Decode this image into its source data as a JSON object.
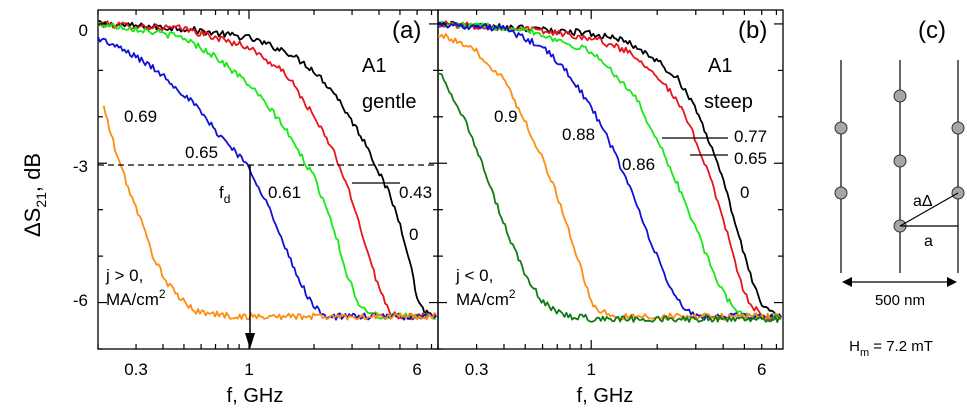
{
  "figure": {
    "ylabel_main": "ΔS",
    "ylabel_sub": "21",
    "ylabel_tail": ", dB",
    "xlabel": "f, GHz",
    "yticks": [
      "0",
      "-3",
      "-6"
    ],
    "xticks": [
      "0.3",
      "1",
      "6"
    ]
  },
  "colors": {
    "black": "#000000",
    "red": "#e8141b",
    "green": "#18e818",
    "blue": "#1010d8",
    "orange": "#ff8c10",
    "darkgreen": "#137a13"
  },
  "chart_data": [
    {
      "type": "line",
      "panel_label": "(a)",
      "sample_label": "A1",
      "profile_label": "gentle",
      "xlabel": "f, GHz",
      "xscale": "log",
      "xlim": [
        0.2,
        7.5
      ],
      "ylim": [
        -7,
        0.3
      ],
      "threshold_y": -3,
      "threshold_label": "f",
      "threshold_label_sub": "d",
      "threshold_x": 1.0,
      "current_note_line1": "j > 0,",
      "current_note_line2": "MA/cm",
      "current_note_sup": "2",
      "series": [
        {
          "label": "0",
          "color": "black",
          "x": [
            0.2,
            0.5,
            1,
            1.5,
            2,
            2.5,
            3,
            3.5,
            4,
            4.5,
            5,
            5.5,
            6,
            6.5,
            7.5
          ],
          "y": [
            0,
            -0.1,
            -0.3,
            -0.6,
            -1.0,
            -1.5,
            -2.1,
            -2.6,
            -3.2,
            -3.7,
            -4.3,
            -5.0,
            -5.9,
            -6.2,
            -6.3
          ]
        },
        {
          "label": "0.43",
          "color": "red",
          "x": [
            0.2,
            0.5,
            1,
            1.5,
            2,
            2.5,
            3,
            3.5,
            4,
            4.5,
            5,
            5.5,
            6,
            7.5
          ],
          "y": [
            0,
            -0.1,
            -0.5,
            -1.1,
            -2.0,
            -2.8,
            -3.8,
            -4.8,
            -5.7,
            -6.2,
            -6.3,
            -6.3,
            -6.3,
            -6.3
          ]
        },
        {
          "label": "0.61",
          "color": "green",
          "x": [
            0.2,
            0.3,
            0.5,
            0.7,
            1,
            1.4,
            2,
            2.4,
            2.8,
            3.2,
            3.6,
            4,
            7.5
          ],
          "y": [
            0,
            -0.1,
            -0.3,
            -0.7,
            -1.3,
            -2.1,
            -3.3,
            -4.2,
            -5.3,
            -6.0,
            -6.2,
            -6.3,
            -6.3
          ]
        },
        {
          "label": "0.65",
          "color": "blue",
          "x": [
            0.2,
            0.3,
            0.4,
            0.55,
            0.7,
            0.85,
            1,
            1.2,
            1.4,
            1.7,
            2,
            2.3,
            2.6,
            3,
            7.5
          ],
          "y": [
            -0.3,
            -0.7,
            -1.1,
            -1.7,
            -2.3,
            -2.7,
            -3.1,
            -3.8,
            -4.6,
            -5.5,
            -6.1,
            -6.3,
            -6.3,
            -6.3,
            -6.3
          ]
        },
        {
          "label": "0.69",
          "color": "orange",
          "x": [
            0.21,
            0.24,
            0.28,
            0.32,
            0.36,
            0.42,
            0.5,
            0.58,
            0.7,
            0.85,
            1,
            1.5,
            7.5
          ],
          "y": [
            -1.7,
            -2.7,
            -3.6,
            -4.3,
            -5.0,
            -5.6,
            -6.0,
            -6.2,
            -6.25,
            -6.3,
            -6.3,
            -6.3,
            -6.3
          ]
        }
      ]
    },
    {
      "type": "line",
      "panel_label": "(b)",
      "sample_label": "A1",
      "profile_label": "steep",
      "xlabel": "f, GHz",
      "xscale": "log",
      "xlim": [
        0.2,
        7.5
      ],
      "ylim": [
        -7,
        0.3
      ],
      "current_note_line1": "j < 0,",
      "current_note_line2": "MA/cm",
      "current_note_sup": "2",
      "series": [
        {
          "label": "0",
          "color": "black",
          "x": [
            0.2,
            0.5,
            1,
            1.5,
            2,
            2.5,
            3,
            3.5,
            4,
            4.5,
            5,
            5.5,
            6,
            6.5,
            7.5
          ],
          "y": [
            0,
            -0.1,
            -0.2,
            -0.4,
            -0.8,
            -1.2,
            -1.8,
            -2.6,
            -3.4,
            -4.2,
            -5.0,
            -5.6,
            -6.0,
            -6.2,
            -6.3
          ]
        },
        {
          "label": "0.65",
          "color": "red",
          "x": [
            0.2,
            0.5,
            1,
            1.5,
            2,
            2.5,
            3,
            3.5,
            4,
            4.5,
            5,
            5.5,
            6,
            7.5
          ],
          "y": [
            0,
            -0.1,
            -0.3,
            -0.6,
            -1.1,
            -1.7,
            -2.5,
            -3.3,
            -4.2,
            -5.1,
            -5.8,
            -6.1,
            -6.3,
            -6.4
          ]
        },
        {
          "label": "0.77",
          "color": "green",
          "x": [
            0.2,
            0.5,
            1,
            1.3,
            1.6,
            2,
            2.5,
            3,
            3.5,
            4,
            4.5,
            5,
            7.5
          ],
          "y": [
            0,
            -0.1,
            -0.6,
            -1.1,
            -1.6,
            -2.5,
            -3.5,
            -4.4,
            -5.2,
            -5.8,
            -6.1,
            -6.3,
            -6.3
          ]
        },
        {
          "label": "0.86",
          "color": "blue",
          "x": [
            0.2,
            0.4,
            0.6,
            0.8,
            1,
            1.2,
            1.5,
            1.8,
            2.2,
            2.6,
            3,
            7.5
          ],
          "y": [
            0,
            -0.1,
            -0.5,
            -1.1,
            -1.8,
            -2.5,
            -3.5,
            -4.5,
            -5.5,
            -6.1,
            -6.3,
            -6.3
          ]
        },
        {
          "label": "0.88",
          "color": "orange",
          "x": [
            0.2,
            0.3,
            0.4,
            0.5,
            0.6,
            0.7,
            0.8,
            0.9,
            1,
            1.1,
            1.3,
            7.5
          ],
          "y": [
            -0.2,
            -0.6,
            -1.2,
            -2.1,
            -2.9,
            -3.7,
            -4.5,
            -5.3,
            -6.0,
            -6.2,
            -6.3,
            -6.3
          ]
        },
        {
          "label": "0.9",
          "color": "darkgreen",
          "x": [
            0.2,
            0.25,
            0.3,
            0.35,
            0.4,
            0.45,
            0.5,
            0.55,
            0.6,
            0.7,
            0.8,
            0.9,
            1,
            7.5
          ],
          "y": [
            -1.0,
            -1.8,
            -2.7,
            -3.6,
            -4.3,
            -4.9,
            -5.4,
            -5.7,
            -6.0,
            -6.2,
            -6.3,
            -6.3,
            -6.35,
            -6.35
          ]
        }
      ]
    }
  ],
  "panel_c": {
    "label": "(c)",
    "label_a_delta": "aΔ",
    "label_a": "a",
    "scale_label": "500 nm",
    "field_main": "H",
    "field_sub": "m",
    "field_tail": " = 7.2 mT"
  }
}
